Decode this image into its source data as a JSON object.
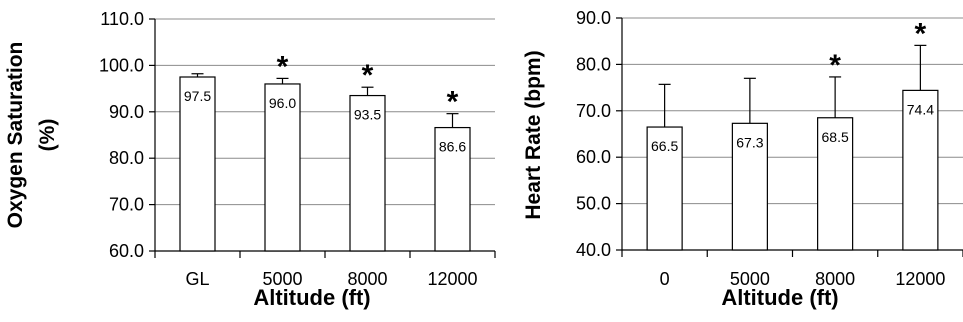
{
  "chart_data": [
    {
      "type": "bar",
      "categories": [
        "GL",
        "5000",
        "8000",
        "12000"
      ],
      "values": [
        97.5,
        96.0,
        93.5,
        86.6
      ],
      "value_labels": [
        "97.5",
        "96.0",
        "93.5",
        "86.6"
      ],
      "error_upper": [
        0.7,
        1.2,
        1.8,
        3.0
      ],
      "significant": [
        false,
        true,
        true,
        true
      ],
      "significance_marker": "*",
      "xlabel": "Altitude (ft)",
      "ylabel_lines": [
        "Oxygen Saturation",
        "(%)"
      ],
      "ylim": [
        60,
        110
      ],
      "yticks": [
        60,
        70,
        80,
        90,
        100,
        110
      ],
      "ytick_labels": [
        "60.0",
        "70.0",
        "80.0",
        "90.0",
        "100.0",
        "110.0"
      ],
      "grid": true,
      "legend": "none",
      "bar_color": "#ffffff",
      "grid_color": "#8c8c8c"
    },
    {
      "type": "bar",
      "categories": [
        "0",
        "5000",
        "8000",
        "12000"
      ],
      "values": [
        66.5,
        67.3,
        68.5,
        74.4
      ],
      "value_labels": [
        "66.5",
        "67.3",
        "68.5",
        "74.4"
      ],
      "error_upper": [
        9.2,
        9.7,
        8.8,
        9.7
      ],
      "significant": [
        false,
        false,
        true,
        true
      ],
      "significance_marker": "*",
      "xlabel": "Altitude (ft)",
      "ylabel_lines": [
        "Heart Rate (bpm)"
      ],
      "ylim": [
        40,
        90
      ],
      "yticks": [
        40,
        50,
        60,
        70,
        80,
        90
      ],
      "ytick_labels": [
        "40.0",
        "50.0",
        "60.0",
        "70.0",
        "80.0",
        "90.0"
      ],
      "grid": true,
      "legend": "none",
      "bar_color": "#ffffff",
      "grid_color": "#8c8c8c"
    }
  ]
}
